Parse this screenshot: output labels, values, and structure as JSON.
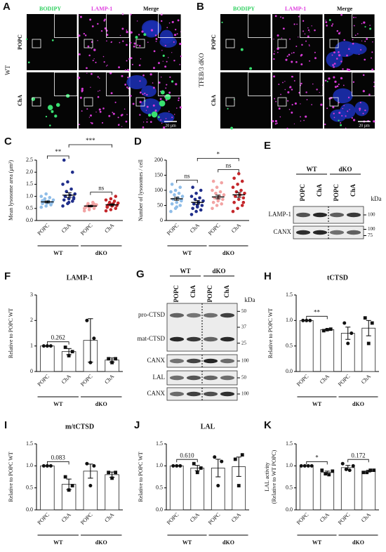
{
  "figure": {
    "microscopy": [
      {
        "label": "A",
        "group": "WT",
        "channels": [
          "BODIPY",
          "LAMP-1",
          "Merge"
        ],
        "rows": [
          "POPC",
          "ChA"
        ],
        "scale_bar": "20 µm"
      },
      {
        "label": "B",
        "group": "TFEB/3 dKO",
        "channels": [
          "BODIPY",
          "LAMP-1",
          "Merge"
        ],
        "rows": [
          "POPC",
          "ChA"
        ],
        "scale_bar": "20 µm"
      }
    ],
    "blots": [
      {
        "label": "E",
        "groups": [
          "WT",
          "dKO"
        ],
        "lanes": [
          "POPC",
          "ChA",
          "POPC",
          "ChA"
        ],
        "unit": "kDa",
        "rows": [
          {
            "names": [
              "LAMP-1"
            ],
            "markers": [
              100
            ]
          },
          {
            "names": [
              "CANX"
            ],
            "markers": [
              100,
              75
            ]
          }
        ]
      },
      {
        "label": "G",
        "groups": [
          "WT",
          "dKO"
        ],
        "lanes": [
          "POPC",
          "ChA",
          "POPC",
          "ChA"
        ],
        "unit": "kDa",
        "rows": [
          {
            "names": [
              "pro-CTSD",
              "mat-CTSD"
            ],
            "markers": [
              50,
              37,
              25
            ]
          },
          {
            "names": [
              "CANX"
            ],
            "markers": [
              100
            ]
          },
          {
            "names": [
              "LAL"
            ],
            "markers": [
              50
            ]
          },
          {
            "names": [
              "CANX"
            ],
            "markers": [
              100
            ]
          }
        ]
      }
    ]
  },
  "chart_data": [
    {
      "type": "dot",
      "label": "C",
      "y_label": "Mean lysosome area (μm²)",
      "categories": [
        "POPC",
        "ChA",
        "POPC",
        "ChA"
      ],
      "groups": [
        "WT",
        "dKO"
      ],
      "colors": [
        "#8fbde8",
        "#1f2d8a",
        "#f2a3a3",
        "#c4262a"
      ],
      "values": [
        0.77,
        1.05,
        0.6,
        0.65
      ],
      "errors": [
        0.04,
        0.1,
        0.03,
        0.04
      ],
      "points": [
        [
          0.55,
          0.6,
          0.65,
          0.7,
          0.72,
          0.75,
          0.78,
          0.8,
          0.85,
          0.9,
          0.95,
          1.0,
          1.1,
          0.68,
          0.82
        ],
        [
          0.6,
          0.7,
          0.8,
          0.85,
          0.9,
          0.95,
          1.0,
          1.05,
          1.1,
          1.2,
          1.3,
          1.5,
          1.6,
          2.0,
          2.5,
          0.75,
          0.9,
          1.0
        ],
        [
          0.4,
          0.45,
          0.5,
          0.55,
          0.58,
          0.6,
          0.6,
          0.62,
          0.65,
          0.7,
          0.75,
          0.5,
          0.55,
          0.68
        ],
        [
          0.4,
          0.45,
          0.5,
          0.55,
          0.6,
          0.62,
          0.65,
          0.7,
          0.72,
          0.75,
          0.8,
          0.85,
          0.9,
          1.0,
          0.58,
          0.66
        ]
      ],
      "ylim": [
        0,
        2.5
      ],
      "yticks": [
        {
          "value": 0,
          "label": "0.0"
        },
        0.5,
        {
          "value": 1,
          "label": "1.0"
        },
        1.5,
        {
          "value": 2,
          "label": "2.0"
        },
        2.5
      ],
      "annotations": [
        {
          "text": "**",
          "from": 0,
          "to": 1
        },
        {
          "text": "***",
          "from": 1,
          "to": 3
        },
        {
          "text": "ns",
          "from": 2,
          "to": 3
        }
      ]
    },
    {
      "type": "dot",
      "label": "D",
      "y_label": "Number of lysosomes / cell",
      "categories": [
        "POPC",
        "ChA",
        "POPC",
        "ChA"
      ],
      "groups": [
        "WT",
        "dKO"
      ],
      "colors": [
        "#8fbde8",
        "#1f2d8a",
        "#f2a3a3",
        "#c4262a"
      ],
      "values": [
        72,
        60,
        78,
        85
      ],
      "errors": [
        5,
        6,
        6,
        8
      ],
      "points": [
        [
          30,
          40,
          50,
          55,
          60,
          65,
          70,
          75,
          80,
          85,
          90,
          95,
          100,
          110,
          120,
          45,
          68
        ],
        [
          20,
          30,
          35,
          40,
          45,
          50,
          55,
          60,
          65,
          70,
          75,
          80,
          90,
          100,
          110,
          50
        ],
        [
          40,
          50,
          55,
          60,
          65,
          70,
          75,
          80,
          85,
          90,
          95,
          100,
          110,
          125,
          130,
          72
        ],
        [
          30,
          40,
          50,
          60,
          70,
          75,
          80,
          85,
          90,
          95,
          100,
          110,
          120,
          130,
          140,
          155,
          60
        ]
      ],
      "ylim": [
        0,
        200
      ],
      "yticks": [
        0,
        50,
        100,
        150,
        200
      ],
      "annotations": [
        {
          "text": "ns",
          "from": 0,
          "to": 1
        },
        {
          "text": "*",
          "from": 1,
          "to": 3
        },
        {
          "text": "ns",
          "from": 2,
          "to": 3
        }
      ]
    },
    {
      "type": "bar",
      "label": "F",
      "title": "LAMP-1",
      "y_label": "Relative to POPC WT",
      "categories": [
        "POPC",
        "ChA",
        "POPC",
        "ChA"
      ],
      "groups": [
        "WT",
        "dKO"
      ],
      "markers": [
        "circle",
        "square",
        "circle",
        "square"
      ],
      "values": [
        1,
        0.78,
        1.22,
        0.45
      ],
      "errors": [
        0,
        0.12,
        0.85,
        0.08
      ],
      "points": [
        [
          1,
          1,
          1
        ],
        [
          0.95,
          0.62,
          0.78
        ],
        [
          2.0,
          0.35,
          1.3
        ],
        [
          0.5,
          0.35,
          0.5
        ]
      ],
      "ylim": [
        0,
        3
      ],
      "yticks": [
        0,
        1,
        2,
        3
      ],
      "annotations": [
        {
          "text": "0.262",
          "from": 0,
          "to": 1
        }
      ]
    },
    {
      "type": "bar",
      "label": "H",
      "title": "tCTSD",
      "y_label": "Relative to POPC WT",
      "categories": [
        "POPC",
        "ChA",
        "POPC",
        "ChA"
      ],
      "groups": [
        "WT",
        "dKO"
      ],
      "markers": [
        "circle",
        "square",
        "circle",
        "square"
      ],
      "values": [
        1,
        0.82,
        0.75,
        0.85
      ],
      "errors": [
        0,
        0.01,
        0.12,
        0.15
      ],
      "points": [
        [
          1,
          1,
          1
        ],
        [
          0.8,
          0.82,
          0.83
        ],
        [
          0.95,
          0.55,
          0.75
        ],
        [
          1.05,
          0.55,
          0.95
        ]
      ],
      "ylim": [
        0,
        1.5
      ],
      "yticks": [
        {
          "value": 0,
          "label": "0.0"
        },
        0.5,
        {
          "value": 1,
          "label": "1.0"
        },
        1.5
      ],
      "annotations": [
        {
          "text": "**",
          "from": 0,
          "to": 1
        }
      ]
    },
    {
      "type": "bar",
      "label": "I",
      "title": "m/tCTSD",
      "y_label": "Relative to POPC WT",
      "categories": [
        "POPC",
        "ChA",
        "POPC",
        "ChA"
      ],
      "groups": [
        "WT",
        "dKO"
      ],
      "markers": [
        "circle",
        "square",
        "circle",
        "square"
      ],
      "values": [
        1,
        0.58,
        0.88,
        0.8
      ],
      "errors": [
        0,
        0.12,
        0.16,
        0.06
      ],
      "points": [
        [
          1,
          1,
          1
        ],
        [
          0.75,
          0.45,
          0.55
        ],
        [
          1.05,
          0.55,
          1.0
        ],
        [
          0.85,
          0.72,
          0.85
        ]
      ],
      "ylim": [
        0,
        1.5
      ],
      "yticks": [
        {
          "value": 0,
          "label": "0.0"
        },
        0.5,
        {
          "value": 1,
          "label": "1.0"
        },
        1.5
      ],
      "annotations": [
        {
          "text": "0.083",
          "from": 0,
          "to": 1
        }
      ]
    },
    {
      "type": "bar",
      "label": "J",
      "title": "LAL",
      "y_label": "Relative to POPC WT",
      "categories": [
        "POPC",
        "ChA",
        "POPC",
        "ChA"
      ],
      "groups": [
        "WT",
        "dKO"
      ],
      "markers": [
        "circle",
        "square",
        "circle",
        "square"
      ],
      "values": [
        1,
        0.95,
        0.95,
        0.98
      ],
      "errors": [
        0,
        0.06,
        0.2,
        0.22
      ],
      "points": [
        [
          1,
          1,
          1
        ],
        [
          1.05,
          0.85,
          0.95
        ],
        [
          1.2,
          0.55,
          1.1
        ],
        [
          1.15,
          0.55,
          1.25
        ]
      ],
      "ylim": [
        0,
        1.5
      ],
      "yticks": [
        {
          "value": 0,
          "label": "0.0"
        },
        0.5,
        {
          "value": 1,
          "label": "1.0"
        },
        1.5
      ],
      "annotations": [
        {
          "text": "0.610",
          "from": 0,
          "to": 1
        }
      ]
    },
    {
      "type": "bar",
      "label": "K",
      "y_label": [
        "LAL activity",
        "(Relative to WT POPC)"
      ],
      "categories": [
        "POPC",
        "ChA",
        "POPC",
        "ChA"
      ],
      "groups": [
        "WT",
        "dKO"
      ],
      "markers": [
        "circle",
        "square",
        "circle",
        "square"
      ],
      "values": [
        1,
        0.85,
        0.96,
        0.88
      ],
      "errors": [
        0,
        0.03,
        0.05,
        0.02
      ],
      "points": [
        [
          1,
          1,
          1,
          1
        ],
        [
          0.9,
          0.82,
          0.8,
          0.88
        ],
        [
          1.05,
          0.92,
          0.9,
          1.0
        ],
        [
          0.85,
          0.85,
          0.9,
          0.9
        ]
      ],
      "ylim": [
        0,
        1.5
      ],
      "yticks": [
        {
          "value": 0,
          "label": "0.0"
        },
        0.5,
        {
          "value": 1,
          "label": "1.0"
        },
        1.5
      ],
      "annotations": [
        {
          "text": "*",
          "from": 0,
          "to": 1
        },
        {
          "text": "0.172",
          "from": 2,
          "to": 3
        }
      ]
    }
  ]
}
